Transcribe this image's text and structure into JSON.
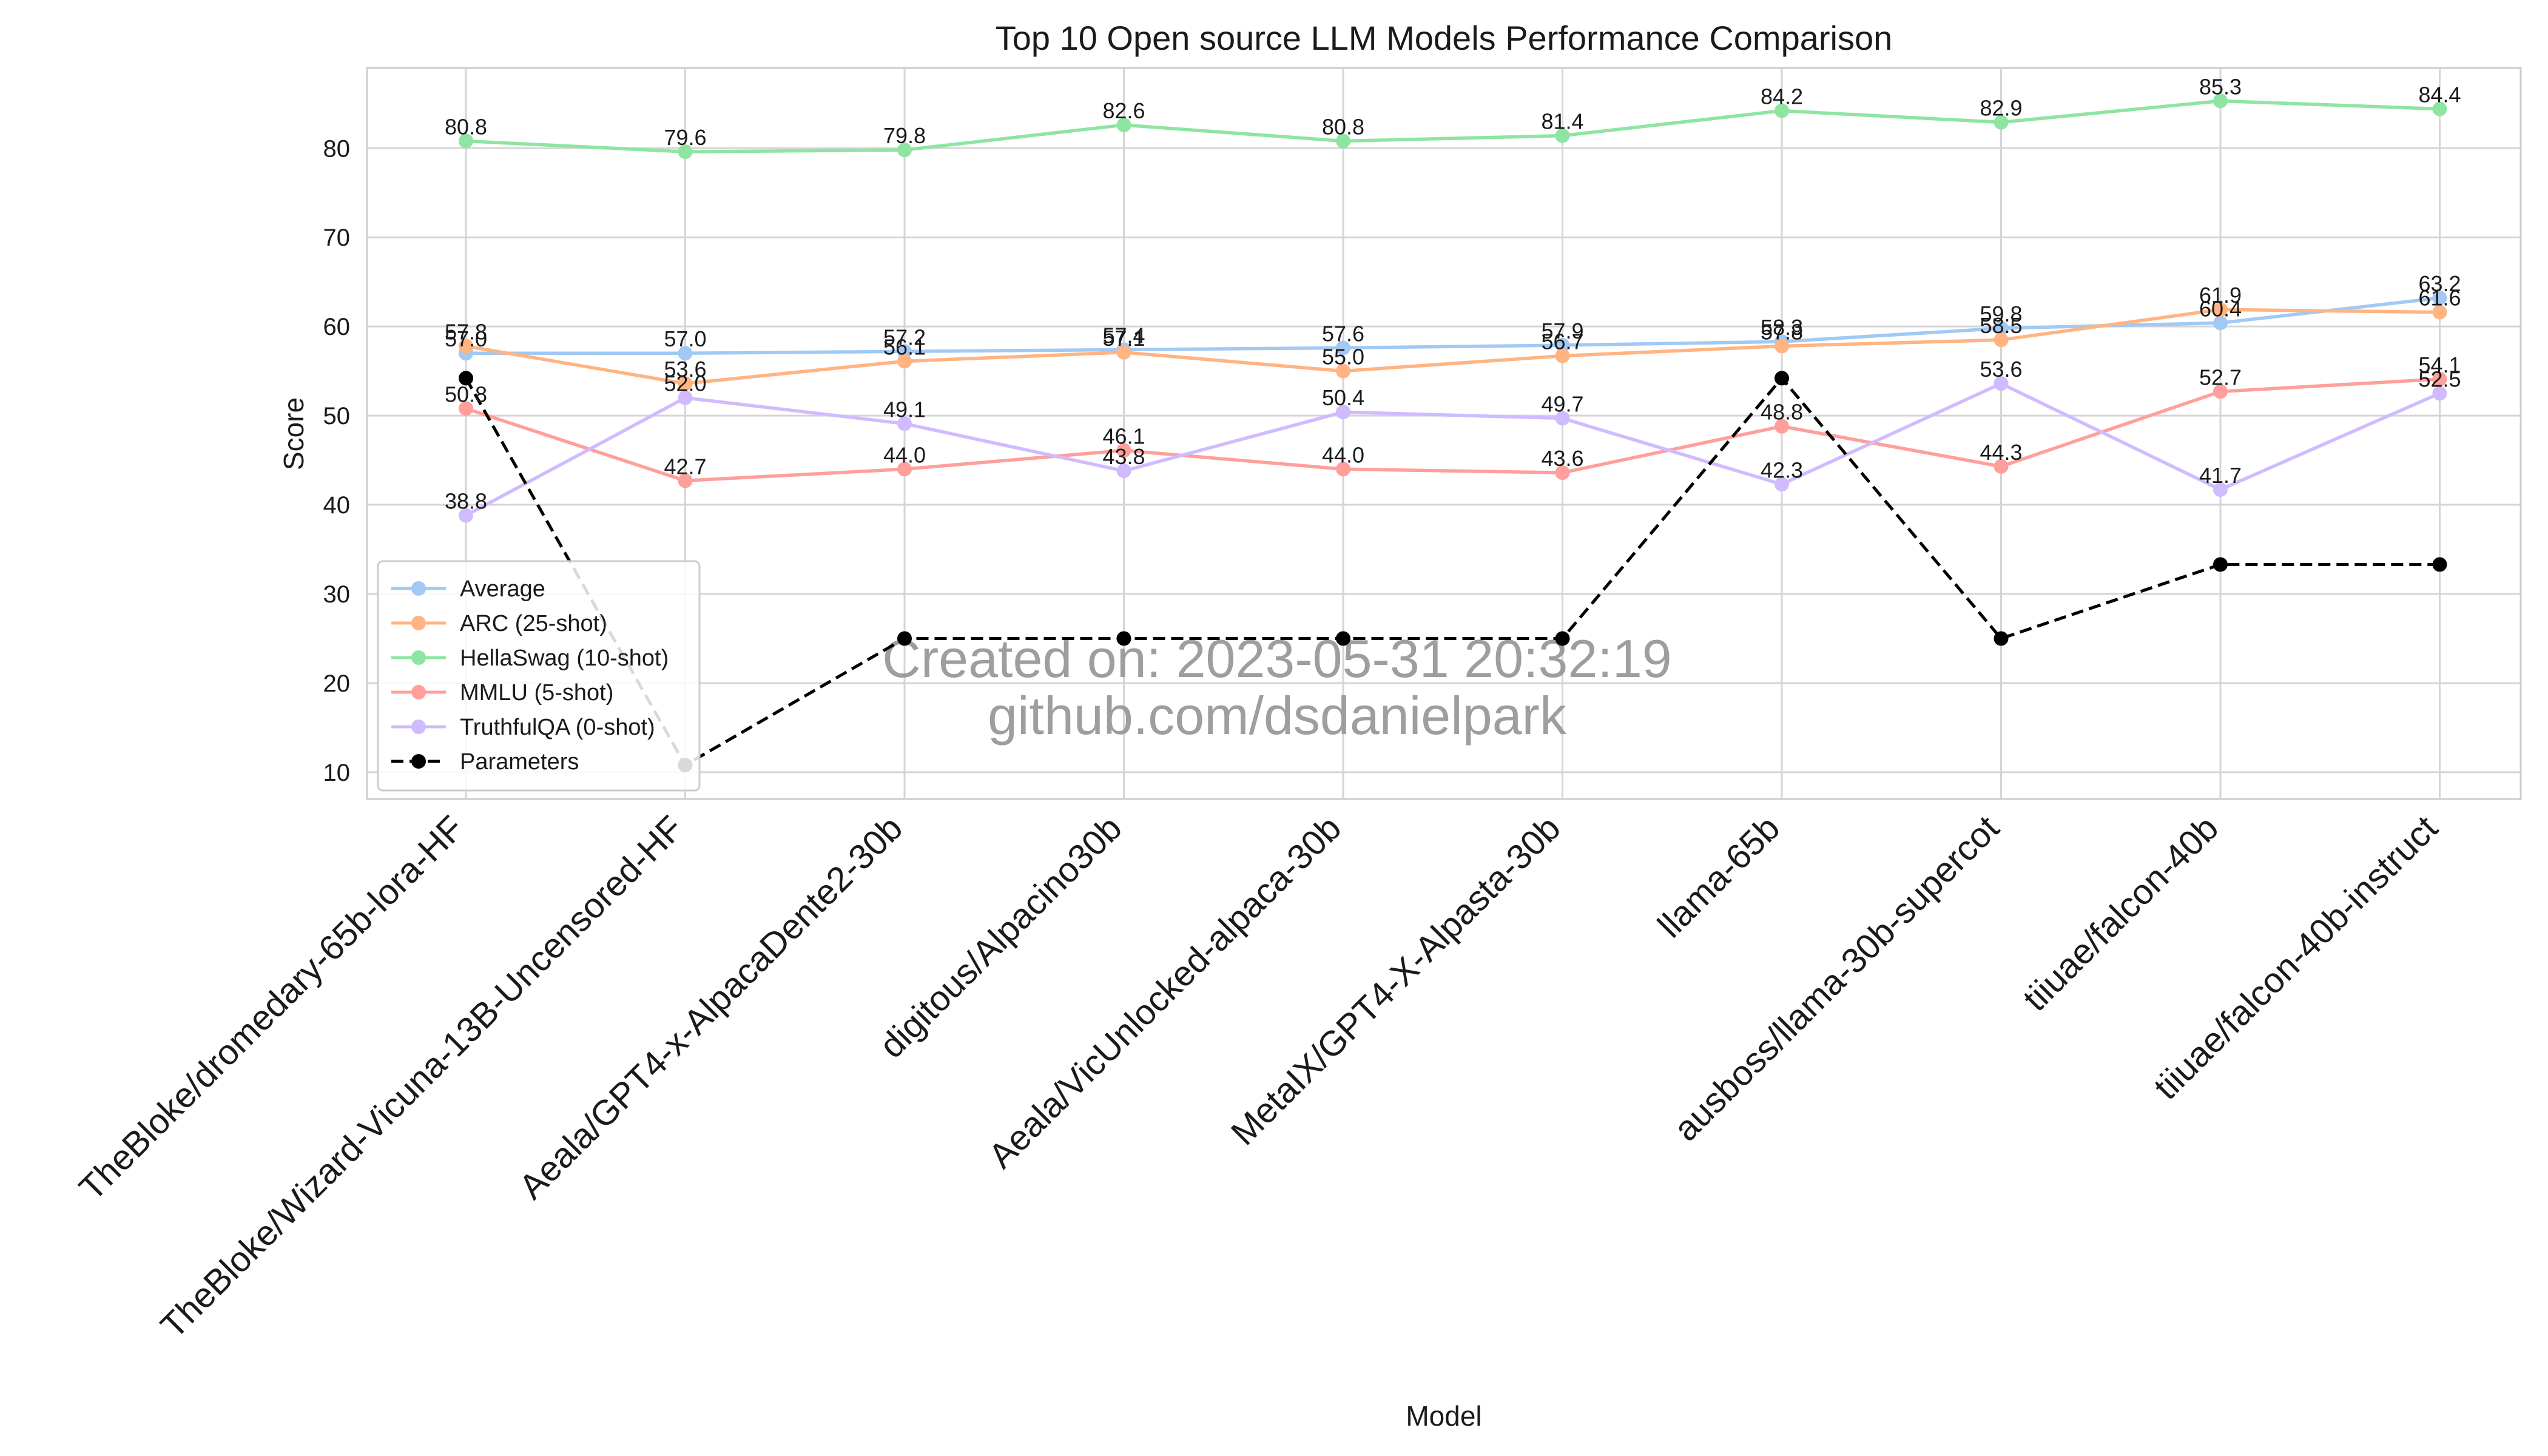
{
  "chart_data": {
    "type": "line",
    "title": "Top 10 Open source LLM Models Performance Comparison",
    "xlabel": "Model",
    "ylabel": "Score",
    "ylim": [
      7,
      89
    ],
    "yticks": [
      10,
      20,
      30,
      40,
      50,
      60,
      70,
      80
    ],
    "grid": true,
    "legend_position": "lower-left",
    "categories": [
      "TheBloke/dromedary-65b-lora-HF",
      "TheBloke/Wizard-Vicuna-13B-Uncensored-HF",
      "Aeala/GPT4-x-AlpacaDente2-30b",
      "digitous/Alpacino30b",
      "Aeala/VicUnlocked-alpaca-30b",
      "MetaIX/GPT4-X-Alpasta-30b",
      "llama-65b",
      "ausboss/llama-30b-supercot",
      "tiiuae/falcon-40b",
      "tiiuae/falcon-40b-instruct"
    ],
    "series": [
      {
        "name": "Average",
        "color": "#a1c9f4",
        "dashed": false,
        "labels": true,
        "values": [
          57.0,
          57.0,
          57.2,
          57.4,
          57.6,
          57.9,
          58.3,
          59.8,
          60.4,
          63.2
        ]
      },
      {
        "name": "ARC (25-shot)",
        "color": "#ffb482",
        "dashed": false,
        "labels": true,
        "values": [
          57.8,
          53.6,
          56.1,
          57.1,
          55.0,
          56.7,
          57.8,
          58.5,
          61.9,
          61.6
        ]
      },
      {
        "name": "HellaSwag (10-shot)",
        "color": "#8de5a1",
        "dashed": false,
        "labels": true,
        "values": [
          80.8,
          79.6,
          79.8,
          82.6,
          80.8,
          81.4,
          84.2,
          82.9,
          85.3,
          84.4
        ]
      },
      {
        "name": "MMLU (5-shot)",
        "color": "#ff9f9b",
        "dashed": false,
        "labels": true,
        "values": [
          50.8,
          42.7,
          44.0,
          46.1,
          44.0,
          43.6,
          48.8,
          44.3,
          52.7,
          54.1
        ]
      },
      {
        "name": "TruthfulQA (0-shot)",
        "color": "#d0bbff",
        "dashed": false,
        "labels": true,
        "values": [
          38.8,
          52.0,
          49.1,
          43.8,
          50.4,
          49.7,
          42.3,
          53.6,
          41.7,
          52.5
        ]
      },
      {
        "name": "Parameters",
        "color": "#000000",
        "dashed": true,
        "labels": false,
        "values": [
          54.2,
          10.8,
          25.0,
          25.0,
          25.0,
          25.0,
          54.2,
          25.0,
          33.3,
          33.3
        ]
      }
    ],
    "watermark": [
      "Created on: 2023-05-31 20:32:19",
      "github.com/dsdanielpark"
    ]
  }
}
